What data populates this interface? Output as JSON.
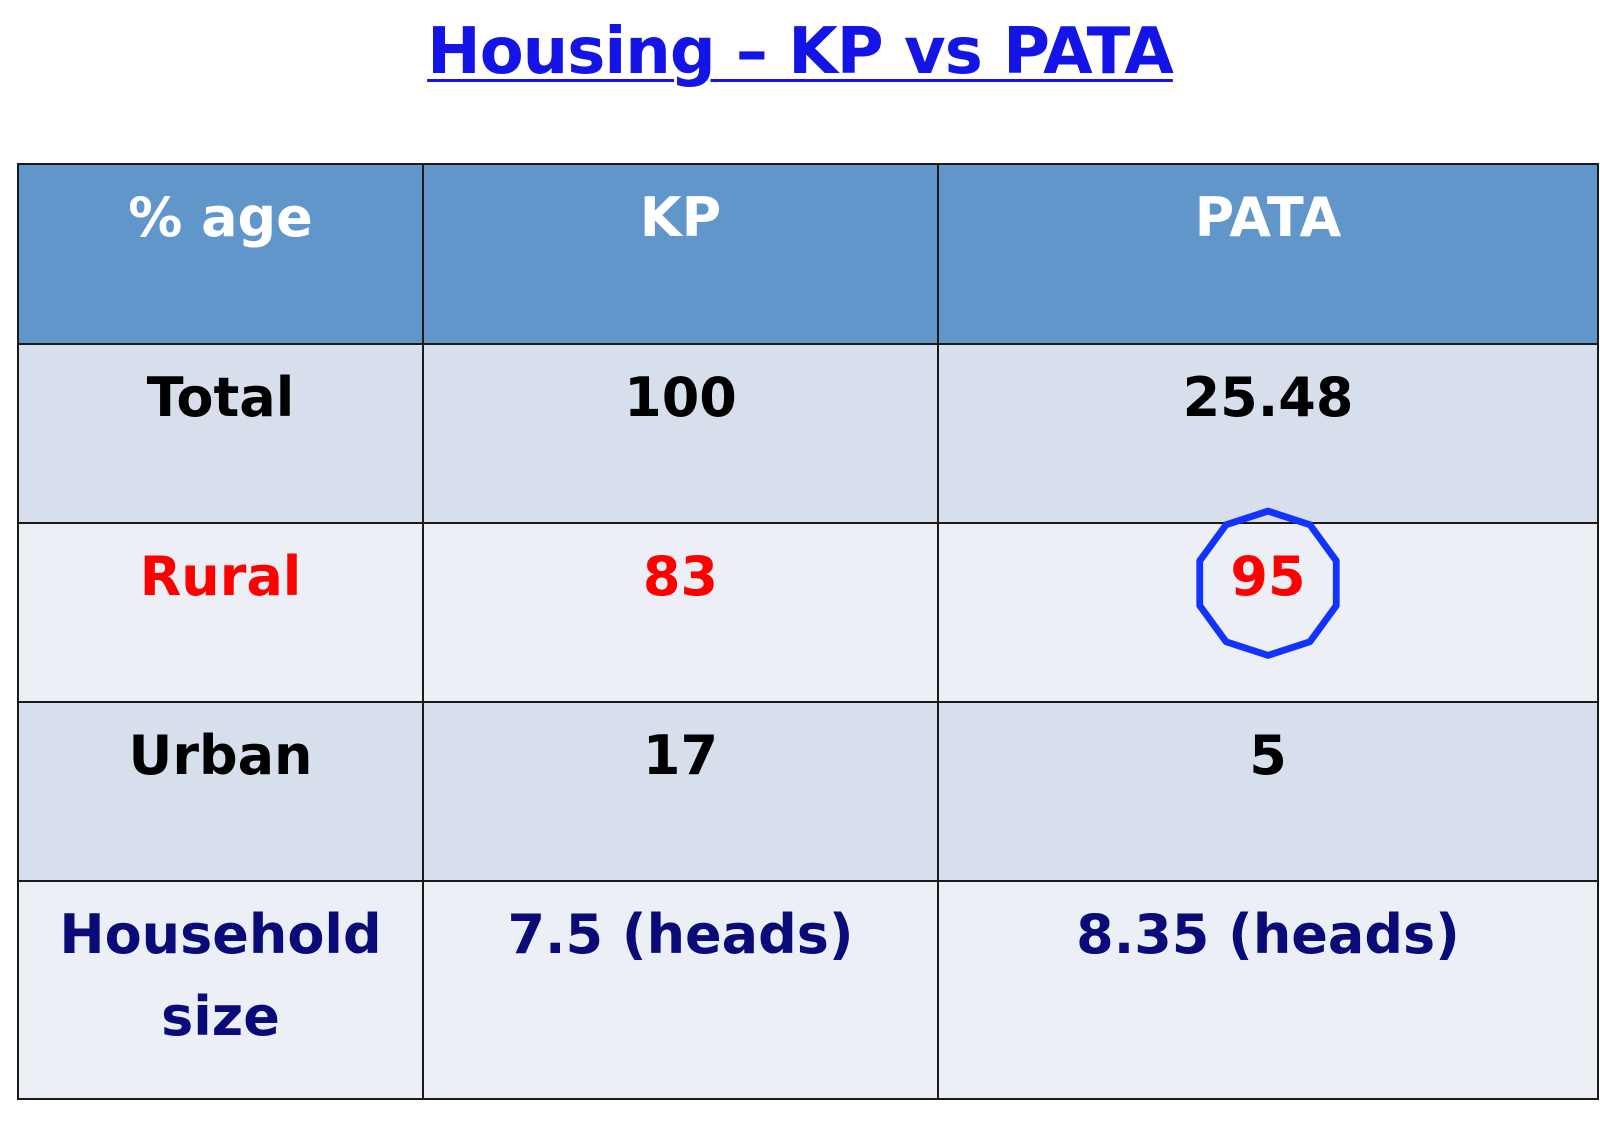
{
  "title": "Housing – KP vs PATA",
  "colors": {
    "title": "#1414e6",
    "header_bg": "#6196cb",
    "row_dark_bg": "#d7dfec",
    "row_light_bg": "#ecf0f6",
    "text_default": "#000000",
    "text_rural": "#ff0000",
    "text_household": "#0a0a78",
    "highlight_ring": "#1233ff"
  },
  "table": {
    "headers": [
      "% age",
      "KP",
      "PATA"
    ],
    "rows": [
      {
        "label": "Total",
        "kp": "100",
        "pata": "25.48",
        "style": "default",
        "bg": "dark"
      },
      {
        "label": "Rural",
        "kp": "83",
        "pata": "95",
        "style": "rural",
        "bg": "light",
        "highlight": "octagon-ring-icon"
      },
      {
        "label": "Urban",
        "kp": "17",
        "pata": "5",
        "style": "default",
        "bg": "dark"
      },
      {
        "label": "Household size",
        "kp": "7.5 (heads)",
        "pata": "8.35 (heads)",
        "style": "household",
        "bg": "light"
      }
    ]
  }
}
